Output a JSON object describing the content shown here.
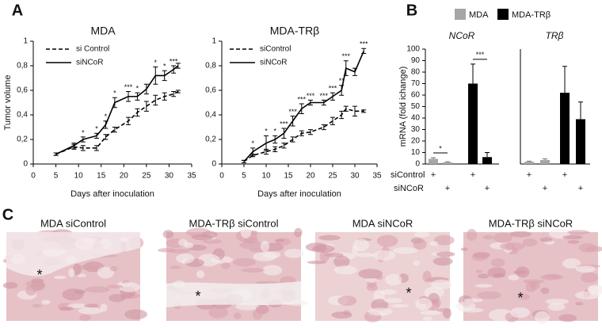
{
  "panel_labels": {
    "a": "A",
    "b": "B",
    "c": "C"
  },
  "chart_data": [
    {
      "type": "line",
      "title": "MDA",
      "xlabel": "Days after inoculation",
      "ylabel": "Tumor volume",
      "x": [
        5,
        9,
        11,
        14,
        16,
        18,
        21,
        23,
        25,
        27,
        29,
        31,
        32
      ],
      "xlim": [
        0,
        35
      ],
      "xticks": [
        0,
        5,
        10,
        15,
        20,
        25,
        30,
        35
      ],
      "ylim": [
        0,
        1
      ],
      "yticks": [
        0,
        {
          "value": 0.2,
          "label": "0,2"
        },
        {
          "value": 0.4,
          "label": "0,4"
        },
        {
          "value": 0.6,
          "label": "0,6"
        },
        {
          "value": 0.8,
          "label": "0,8"
        },
        1
      ],
      "series": [
        {
          "name": "si Control",
          "color": "#000000",
          "line_style": "dashed",
          "values": [
            0.08,
            0.14,
            0.13,
            0.13,
            0.22,
            0.28,
            0.35,
            0.42,
            0.47,
            0.52,
            0.55,
            0.57,
            0.59
          ],
          "errors": [
            0.01,
            0.02,
            0.02,
            0.02,
            0.02,
            0.02,
            0.03,
            0.03,
            0.04,
            0.04,
            0.03,
            0.02,
            0.01
          ]
        },
        {
          "name": "siNCoR",
          "color": "#000000",
          "line_style": "solid",
          "values": [
            0.08,
            0.15,
            0.2,
            0.23,
            0.32,
            0.5,
            0.55,
            0.55,
            0.61,
            0.72,
            0.72,
            0.77,
            0.8
          ],
          "errors": [
            0.01,
            0.02,
            0.02,
            0.02,
            0.03,
            0.04,
            0.04,
            0.03,
            0.04,
            0.07,
            0.04,
            0.03,
            0.02
          ],
          "significance": [
            null,
            null,
            "*",
            "*",
            "*",
            "*",
            "***",
            "*",
            null,
            "*",
            "*",
            "***",
            null
          ]
        }
      ]
    },
    {
      "type": "line",
      "title": "MDA-TRβ",
      "xlabel": "Days after inoculation",
      "x": [
        5,
        7,
        10,
        12,
        14,
        16,
        18,
        20,
        23,
        25,
        27,
        28,
        30,
        32
      ],
      "xlim": [
        0,
        35
      ],
      "xticks": [
        0,
        5,
        10,
        15,
        20,
        25,
        30,
        35
      ],
      "ylim": [
        0,
        1
      ],
      "yticks": [
        0,
        {
          "value": 0.2,
          "label": "0,2"
        },
        {
          "value": 0.4,
          "label": "0,4"
        },
        {
          "value": 0.6,
          "label": "0,6"
        },
        {
          "value": 0.8,
          "label": "0,8"
        },
        1
      ],
      "series": [
        {
          "name": "siControl",
          "color": "#000000",
          "line_style": "dashed",
          "values": [
            0.02,
            0.07,
            0.1,
            0.12,
            0.15,
            0.2,
            0.25,
            0.26,
            0.3,
            0.35,
            0.4,
            0.45,
            0.43,
            0.43
          ],
          "errors": [
            0.01,
            0.01,
            0.02,
            0.02,
            0.02,
            0.02,
            0.02,
            0.02,
            0.02,
            0.03,
            0.03,
            0.02,
            0.04,
            0.01
          ]
        },
        {
          "name": "siNCoR",
          "color": "#000000",
          "line_style": "solid",
          "values": [
            0.02,
            0.1,
            0.17,
            0.2,
            0.25,
            0.35,
            0.45,
            0.5,
            0.5,
            0.55,
            0.6,
            0.78,
            0.75,
            0.92
          ],
          "errors": [
            0.01,
            0.03,
            0.06,
            0.03,
            0.04,
            0.04,
            0.04,
            0.02,
            0.02,
            0.03,
            0.04,
            0.06,
            0.03,
            0.02
          ],
          "significance": [
            null,
            "*",
            "*",
            "*",
            "***",
            "***",
            "***",
            "***",
            "***",
            "***",
            "**",
            "***",
            null,
            "***"
          ]
        }
      ]
    },
    {
      "type": "bar",
      "title": "NCoR",
      "ylabel": "mRNA (fold ichange)",
      "categories": [
        null,
        null,
        null,
        null
      ],
      "ylim": [
        0,
        100
      ],
      "yticks": [
        0,
        10,
        20,
        30,
        40,
        50,
        60,
        70,
        80,
        90,
        100
      ],
      "series": [
        {
          "name": "MDA",
          "color": "#a6a6a6",
          "values": [
            4.5,
            1.5,
            null,
            null
          ],
          "errors": [
            1,
            0.5,
            null,
            null
          ]
        },
        {
          "name": "MDA-TRβ",
          "color": "#000000",
          "values": [
            null,
            null,
            70,
            6
          ],
          "errors": [
            null,
            null,
            17,
            4
          ]
        }
      ],
      "significance": [
        {
          "between": [
            0,
            1
          ],
          "text": "*"
        },
        {
          "between": [
            2,
            3
          ],
          "text": "***"
        }
      ]
    },
    {
      "type": "bar",
      "title": "TRβ",
      "categories": [
        null,
        null,
        null,
        null
      ],
      "ylim": [
        0,
        100
      ],
      "series": [
        {
          "color": "#a6a6a6",
          "values": [
            2,
            3.5,
            null,
            null
          ],
          "errors": [
            0.5,
            1,
            null,
            null
          ]
        },
        {
          "color": "#000000",
          "values": [
            null,
            null,
            62,
            39
          ],
          "errors": [
            null,
            null,
            23,
            15
          ]
        }
      ]
    }
  ],
  "panel_b_conditions": [
    {
      "label": "siControl",
      "marks": [
        "+",
        null,
        "+",
        null,
        "+",
        null,
        "+",
        null
      ]
    },
    {
      "label": "siNCoR",
      "marks": [
        null,
        "+",
        null,
        "+",
        null,
        "+",
        null,
        "+"
      ]
    }
  ],
  "panel_c": [
    {
      "caption": "MDA siControl",
      "marker": "*"
    },
    {
      "caption": "MDA-TRβ siControl",
      "marker": "*"
    },
    {
      "caption": "MDA siNCoR",
      "marker": "*"
    },
    {
      "caption": "MDA-TRβ siNCoR",
      "marker": "*"
    }
  ]
}
